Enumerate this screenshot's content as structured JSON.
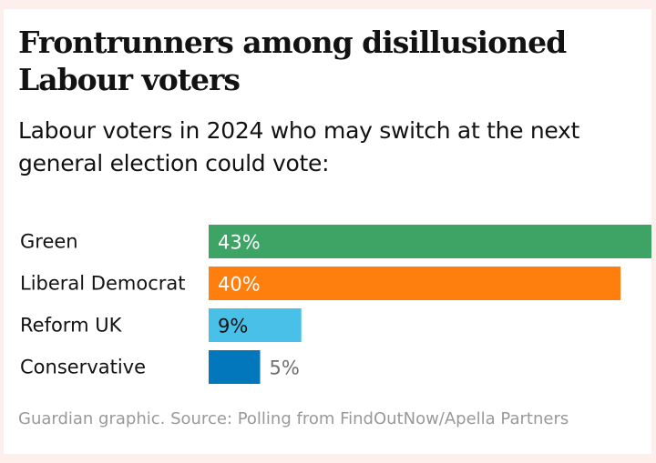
{
  "title_line1": "Frontrunners among disillusioned",
  "title_line2": "Labour voters",
  "subtitle": "Labour voters in 2024 who may switch at the next general election could vote:",
  "source": "Guardian graphic. Source: Polling from FindOutNow/Apella Partners",
  "chart_data": {
    "type": "bar",
    "orientation": "horizontal",
    "categories": [
      "Green",
      "Liberal Democrat",
      "Reform UK",
      "Conservative"
    ],
    "values": [
      43,
      40,
      9,
      5
    ],
    "value_labels": [
      "43%",
      "40%",
      "9%",
      "5%"
    ],
    "colors": [
      "#3da466",
      "#ff7f0e",
      "#48c0e8",
      "#0377bc"
    ],
    "label_colors": [
      "#ffffff",
      "#ffffff",
      "#121212",
      "#707070"
    ],
    "xlim": [
      0,
      43
    ],
    "grid": false
  }
}
